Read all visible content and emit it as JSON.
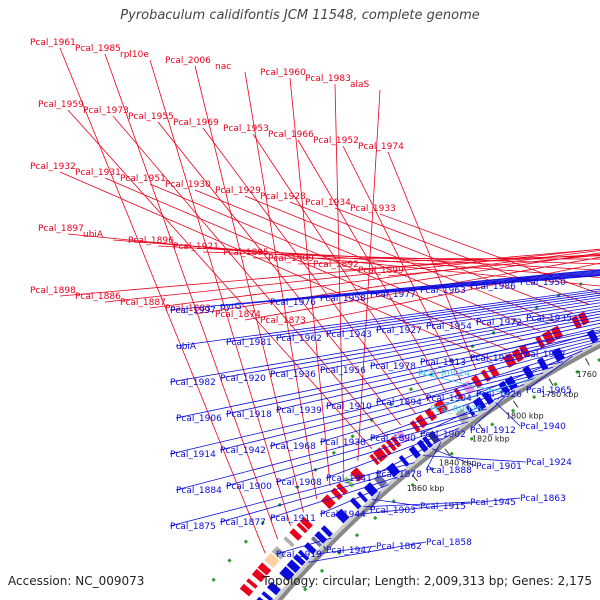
{
  "title": "Pyrobaculum calidifontis JCM 11548, complete genome",
  "accession": "Accession: NC_009073",
  "summary": "Topology: circular; Length: 2,009,313 bp; Genes: 2,175",
  "kbp_ticks": [
    "1720 kbp",
    "1740 kbp",
    "1760 kbp",
    "1780 kbp",
    "1800 kbp",
    "1820 kbp",
    "1840 kbp",
    "1860 kbp"
  ],
  "colors": {
    "forward": "#e8001c",
    "reverse": "#0a0ade",
    "rna": "#3fc7e8",
    "backbone": "#888888"
  },
  "forward_labels": [
    "Pcal_1961",
    "Pcal_1985",
    "rpl10e",
    "Pcal_2006",
    "nac",
    "Pcal_1960",
    "Pcal_1983",
    "alaS",
    "Pcal_1959",
    "Pcal_1973",
    "Pcal_1955",
    "Pcal_1969",
    "Pcal_1953",
    "Pcal_1966",
    "Pcal_1952",
    "Pcal_1974",
    "Pcal_1932",
    "Pcal_1931",
    "Pcal_1951",
    "Pcal_1930",
    "Pcal_1929",
    "Pcal_1928",
    "Pcal_1934",
    "Pcal_1933",
    "Pcal_1897",
    "ubiA",
    "Pcal_1896",
    "Pcal_1921",
    "Pcal_1895",
    "Pcal_1909",
    "Pcal_1892",
    "Pcal_1899",
    "Pcal_1898",
    "Pcal_1886",
    "Pcal_1887",
    "Pcal_1883",
    "Pcal_1874",
    "Pcal_1873"
  ],
  "reverse_labels": [
    "Pcal_1997",
    "pyrG",
    "Pcal_1976",
    "Pcal_1958",
    "Pcal_1977",
    "Pcal_1963",
    "Pcal_1986",
    "Pcal_1950",
    "ubiA",
    "Pcal_1981",
    "Pcal_1962",
    "Pcal_1943",
    "Pcal_1927",
    "Pcal_1954",
    "Pcal_1972",
    "Pcal_1935",
    "Pcal_1982",
    "Pcal_1920",
    "Pcal_1936",
    "Pcal_1956",
    "Pcal_1978",
    "Pcal_1913",
    "Pcal_1937",
    "Pcal_1957",
    "Pcal_1906",
    "Pcal_1918",
    "Pcal_1939",
    "Pcal_1910",
    "Pcal_1894",
    "Pcal_1904",
    "Pcal_1926",
    "Pcal_1965",
    "Pcal_1914",
    "Pcal_1942",
    "Pcal_1968",
    "Pcal_1938",
    "Pcal_1890",
    "Pcal_1902",
    "Pcal_1912",
    "Pcal_1940",
    "Pcal_1884",
    "Pcal_1900",
    "Pcal_1908",
    "Pcal_1941",
    "Pcal_1878",
    "Pcal_1888",
    "Pcal_1901",
    "Pcal_1924",
    "Pcal_1875",
    "Pcal_1877",
    "Pcal_1911",
    "Pcal_1944",
    "Pcal_1903",
    "Pcal_1915",
    "Pcal_1945",
    "Pcal_1863",
    "Pcal_1876",
    "Pcal_1885",
    "Pcal_1919",
    "Pcal_1947",
    "Pcal_1862",
    "Pcal_1858"
  ],
  "rna_labels": [
    "Pcal_R0024",
    "Pcal_R0025"
  ]
}
